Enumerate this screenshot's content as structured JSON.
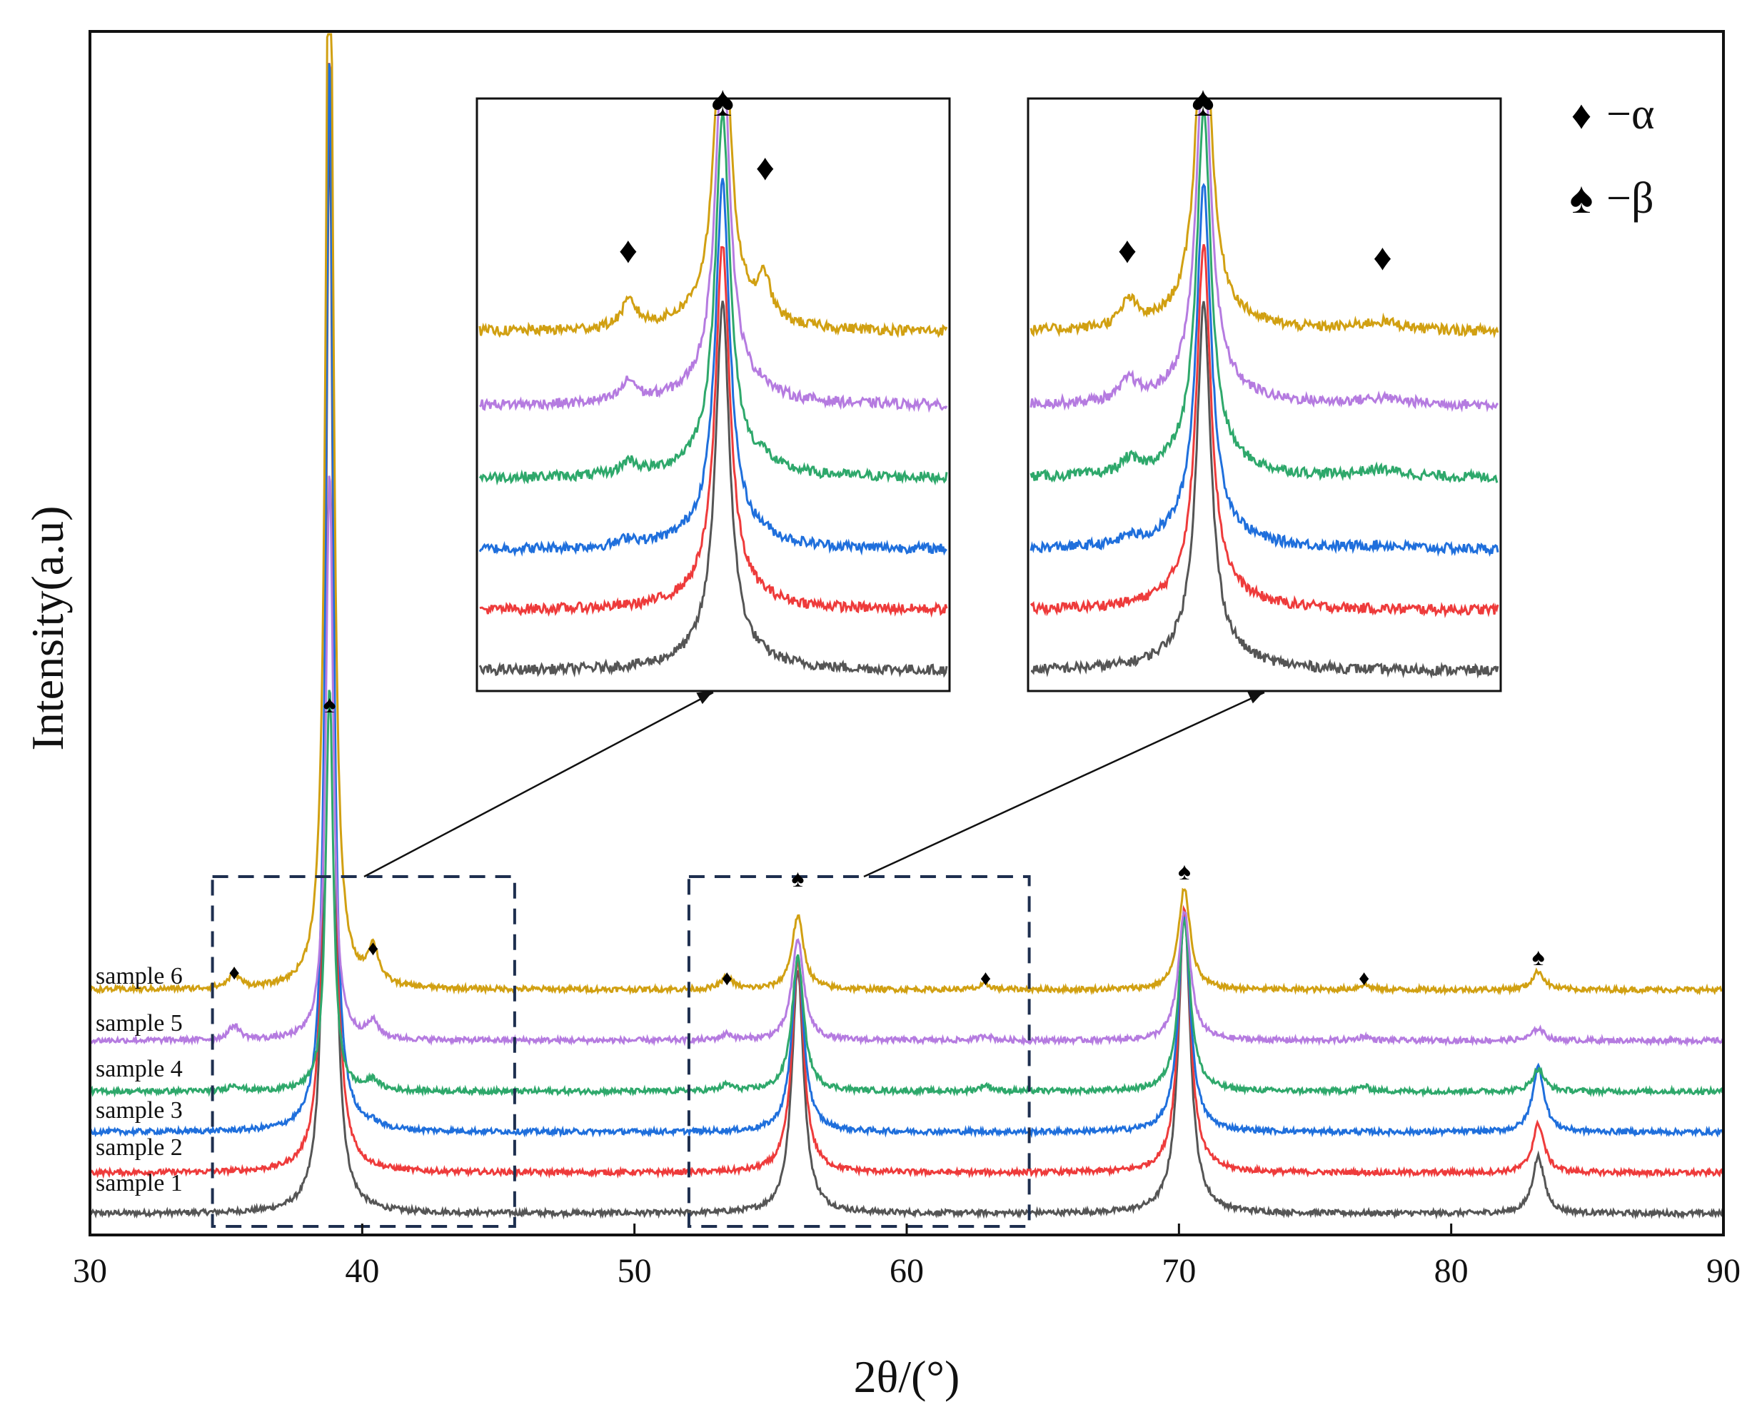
{
  "chart_data": {
    "type": "line",
    "title": "",
    "xlabel": "2θ/(°)",
    "ylabel": "Intensity(a.u)",
    "xlim": [
      30,
      90
    ],
    "xticks": [
      "30",
      "40",
      "50",
      "60",
      "70",
      "80",
      "90"
    ],
    "legend": [
      {
        "marker": "♦",
        "label": "−α"
      },
      {
        "marker": "♠",
        "label": "−β"
      }
    ],
    "legend_position": "top-right",
    "series": [
      {
        "name": "sample 1",
        "color": "#555555",
        "offset": 0.0
      },
      {
        "name": "sample 2",
        "color": "#ee3b3b",
        "offset": 1.0
      },
      {
        "name": "sample 3",
        "color": "#1f6fdc",
        "offset": 2.0
      },
      {
        "name": "sample 4",
        "color": "#2ea86b",
        "offset": 3.0
      },
      {
        "name": "sample 5",
        "color": "#b57be0",
        "offset": 4.25
      },
      {
        "name": "sample 6",
        "color": "#d1a012",
        "offset": 5.5
      }
    ],
    "beta_peaks": [
      {
        "x": 38.8,
        "heights": [
          27,
          27.5,
          26.5,
          10,
          14,
          30
        ]
      },
      {
        "x": 56.0,
        "heights": [
          6.0,
          5.2,
          4.3,
          3.3,
          2.5,
          1.8
        ]
      },
      {
        "x": 70.2,
        "heights": [
          7.5,
          6.5,
          5.3,
          4.2,
          3.2,
          2.5
        ]
      },
      {
        "x": 83.2,
        "heights": [
          1.4,
          1.2,
          1.6,
          0.55,
          0.3,
          0.45
        ]
      }
    ],
    "alpha_peaks": [
      {
        "x": 35.3,
        "heights": [
          0,
          0,
          0,
          0.15,
          0.35,
          0.35
        ]
      },
      {
        "x": 40.4,
        "heights": [
          0,
          0,
          0.1,
          0.25,
          0.4,
          0.9
        ]
      },
      {
        "x": 53.4,
        "heights": [
          0,
          0,
          0,
          0.15,
          0.15,
          0.3
        ]
      },
      {
        "x": 62.9,
        "heights": [
          0,
          0,
          0,
          0.15,
          0.12,
          0.12
        ]
      },
      {
        "x": 76.8,
        "heights": [
          0,
          0,
          0,
          0.12,
          0.1,
          0.12
        ]
      }
    ],
    "annotations": [
      {
        "symbol": "♦",
        "x": 35.3
      },
      {
        "symbol": "♠",
        "x": 38.8
      },
      {
        "symbol": "♦",
        "x": 40.4
      },
      {
        "symbol": "♦",
        "x": 53.4
      },
      {
        "symbol": "♠",
        "x": 56.0
      },
      {
        "symbol": "♦",
        "x": 62.9
      },
      {
        "symbol": "♠",
        "x": 70.2
      },
      {
        "symbol": "♦",
        "x": 76.8
      },
      {
        "symbol": "♠",
        "x": 83.2
      }
    ],
    "zoom_regions": [
      {
        "x_range": [
          34.5,
          45.6
        ],
        "label": "inset 1"
      },
      {
        "x_range": [
          52.0,
          64.5
        ],
        "label": "inset 2"
      }
    ],
    "insets": [
      {
        "name": "inset 1",
        "markers": [
          {
            "symbol": "♦",
            "x": 0.32
          },
          {
            "symbol": "♠",
            "x": 0.52
          },
          {
            "symbol": "♦",
            "x": 0.61
          }
        ]
      },
      {
        "name": "inset 2",
        "markers": [
          {
            "symbol": "♦",
            "x": 0.21
          },
          {
            "symbol": "♠",
            "x": 0.37
          },
          {
            "symbol": "♦",
            "x": 0.75
          }
        ]
      }
    ]
  }
}
